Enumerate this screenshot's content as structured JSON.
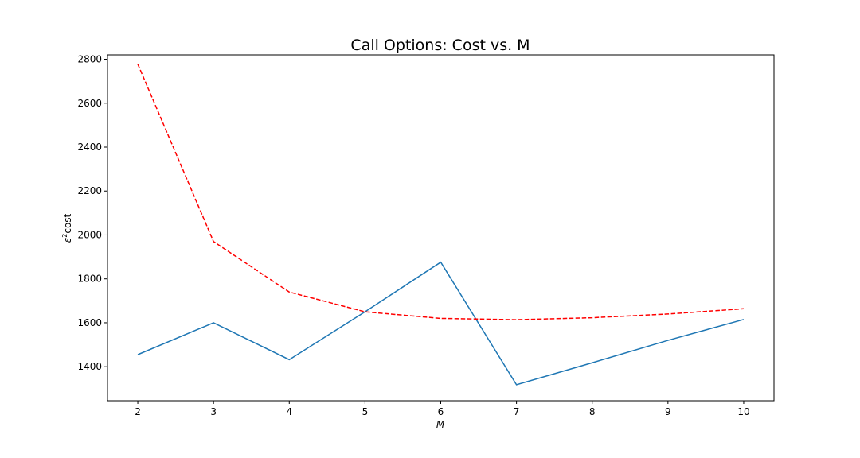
{
  "chart_data": {
    "type": "line",
    "title": "Call Options: Cost vs. M",
    "xlabel": "M",
    "ylabel": "ε²cost",
    "ylabel_parts": {
      "symbol": "ε",
      "sup": "2",
      "text": "cost"
    },
    "x": [
      2,
      3,
      4,
      5,
      6,
      7,
      8,
      9,
      10
    ],
    "xticks": [
      2,
      3,
      4,
      5,
      6,
      7,
      8,
      9,
      10
    ],
    "yticks": [
      1400,
      1600,
      1800,
      2000,
      2200,
      2400,
      2600,
      2800
    ],
    "xlim": [
      1.6,
      10.4
    ],
    "ylim": [
      1245,
      2820
    ],
    "grid": false,
    "series": [
      {
        "values": [
          1455,
          1600,
          1432,
          1650,
          1876,
          1318,
          1418,
          1520,
          1615
        ],
        "color": "#1f77b4",
        "style": "solid"
      },
      {
        "values": [
          2778,
          1970,
          1740,
          1650,
          1620,
          1614,
          1623,
          1640,
          1664
        ],
        "color": "#ff0000",
        "style": "dashed"
      }
    ]
  }
}
